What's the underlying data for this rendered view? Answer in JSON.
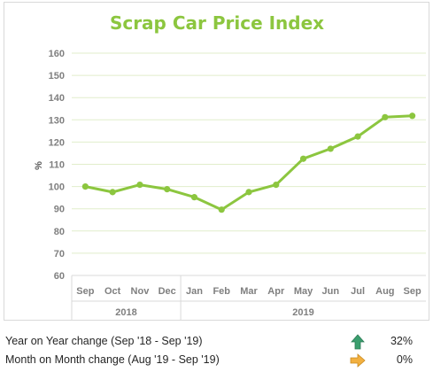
{
  "chart_data": {
    "type": "line",
    "title": "Scrap Car Price Index",
    "ylabel": "%",
    "ylim": [
      60,
      160
    ],
    "yticks": [
      "160",
      "150",
      "140",
      "130",
      "120",
      "110",
      "100",
      "90",
      "80",
      "70",
      "60"
    ],
    "grid": true,
    "categories": [
      "Sep",
      "Oct",
      "Nov",
      "Dec",
      "Jan",
      "Feb",
      "Mar",
      "Apr",
      "May",
      "Jun",
      "Jul",
      "Aug",
      "Sep"
    ],
    "year_groups": [
      {
        "label": "2018",
        "span": 4
      },
      {
        "label": "2019",
        "span": 9
      }
    ],
    "values": [
      100,
      97.5,
      100.8,
      98.8,
      95.2,
      89.6,
      97.5,
      100.8,
      112.5,
      117,
      122.5,
      131.2,
      131.8
    ],
    "line_color": "#8cc63f",
    "title_color": "#8cc63f",
    "grid_color": "#e1eecb"
  },
  "summary": {
    "yoy": {
      "label": "Year on Year change (Sep '18 - Sep '19)",
      "value": "32%",
      "arrow_icon": "arrow-up-icon",
      "arrow_color": "#3a9e6e"
    },
    "mom": {
      "label": "Month on Month change (Aug '19 - Sep '19)",
      "value": "0%",
      "arrow_icon": "arrow-right-icon",
      "arrow_color": "#f2b040"
    }
  }
}
